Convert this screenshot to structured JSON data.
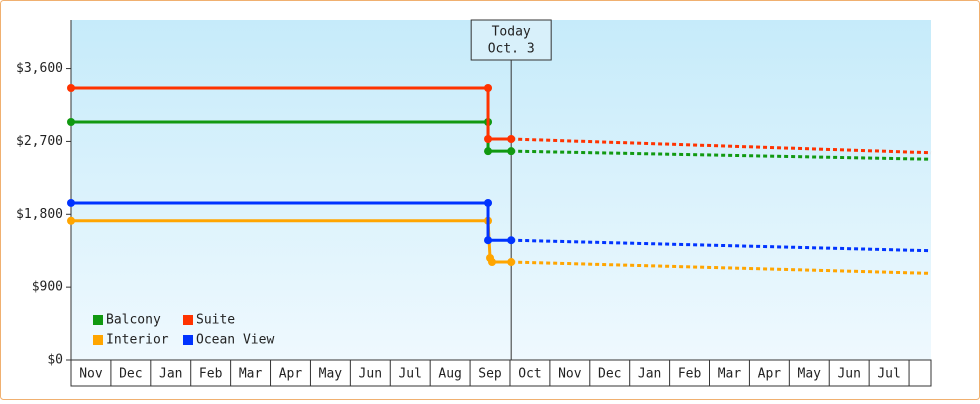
{
  "chart_data": {
    "type": "line",
    "xlim": [
      0,
      21.55
    ],
    "xticks": [
      {
        "value": 0,
        "label": "Nov"
      },
      {
        "value": 1,
        "label": "Dec"
      },
      {
        "value": 2,
        "label": "Jan"
      },
      {
        "value": 3,
        "label": "Feb"
      },
      {
        "value": 4,
        "label": "Mar"
      },
      {
        "value": 5,
        "label": "Apr"
      },
      {
        "value": 6,
        "label": "May"
      },
      {
        "value": 7,
        "label": "Jun"
      },
      {
        "value": 8,
        "label": "Jul"
      },
      {
        "value": 9,
        "label": "Aug"
      },
      {
        "value": 10,
        "label": "Sep"
      },
      {
        "value": 11,
        "label": "Oct"
      },
      {
        "value": 12,
        "label": "Nov"
      },
      {
        "value": 13,
        "label": "Dec"
      },
      {
        "value": 14,
        "label": "Jan"
      },
      {
        "value": 15,
        "label": "Feb"
      },
      {
        "value": 16,
        "label": "Mar"
      },
      {
        "value": 17,
        "label": "Apr"
      },
      {
        "value": 18,
        "label": "May"
      },
      {
        "value": 19,
        "label": "Jun"
      },
      {
        "value": 20,
        "label": "Jul"
      },
      {
        "value": 21,
        "label": ""
      }
    ],
    "ylim": [
      0,
      4200
    ],
    "yticks": [
      {
        "value": 0,
        "label": "$0"
      },
      {
        "value": 900,
        "label": "$900"
      },
      {
        "value": 1800,
        "label": "$1,800"
      },
      {
        "value": 2700,
        "label": "$2,700"
      },
      {
        "value": 3600,
        "label": "$3,600"
      }
    ],
    "annotation": {
      "lines": [
        "Today",
        "Oct. 3"
      ],
      "x": 11.03
    },
    "series": [
      {
        "name": "Balcony",
        "color": "#119911",
        "x": [
          0,
          10.45,
          10.45,
          11.03,
          21.55
        ],
        "values": [
          2940,
          2940,
          2580,
          2580,
          2480
        ]
      },
      {
        "name": "Suite",
        "color": "#ff3300",
        "x": [
          0,
          10.45,
          10.45,
          11.03,
          21.55
        ],
        "values": [
          3360,
          3360,
          2730,
          2730,
          2560
        ]
      },
      {
        "name": "Interior",
        "color": "#ffa500",
        "x": [
          0,
          10.45,
          10.5,
          10.55,
          11.03,
          21.55
        ],
        "values": [
          1720,
          1720,
          1260,
          1210,
          1210,
          1070
        ]
      },
      {
        "name": "Ocean View",
        "color": "#0033ff",
        "x": [
          0,
          10.45,
          10.45,
          11.03,
          21.55
        ],
        "values": [
          1940,
          1940,
          1480,
          1480,
          1350
        ]
      }
    ]
  }
}
